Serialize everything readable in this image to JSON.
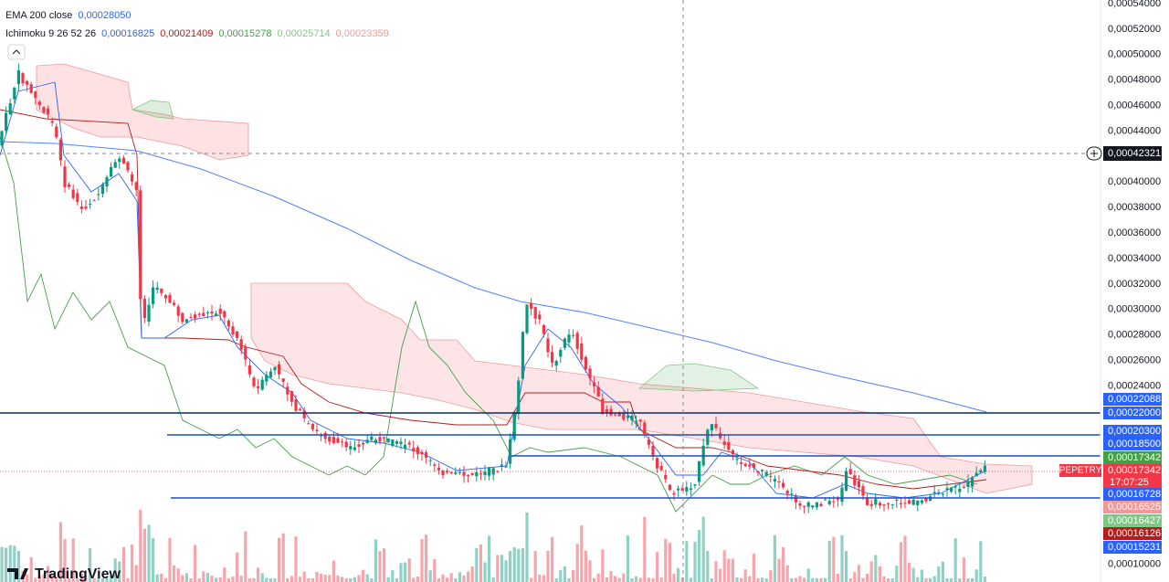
{
  "legend": {
    "ema": {
      "label": "EMA 200 close",
      "value": "0,00028050",
      "color": "#2962ff"
    },
    "ichimoku": {
      "label": "Ichimoku 9 26 52 26",
      "values": [
        "0,00016825",
        "0,00021409",
        "0,00015278",
        "0,00025714",
        "0,00023359"
      ],
      "colors": [
        "#2962ff",
        "#b71c1c",
        "#43a047",
        "#81c784",
        "#ef9a9a"
      ]
    }
  },
  "price_axis": {
    "labels": [
      "0,00054000",
      "0,00052000",
      "0,00050000",
      "0,00048000",
      "0,00046000",
      "0,00044000",
      null,
      "0,00040000",
      "0,00038000",
      "0,00036000",
      "0,00034000",
      "0,00032000",
      "0,00030000",
      "0,00028000",
      "0,00026000",
      "0,00024000",
      null,
      null,
      null,
      null,
      null,
      null,
      "0,00010000"
    ],
    "crosshair": "0,00042321",
    "tags": [
      {
        "text": "0,00022088",
        "color": "#2962ff"
      },
      {
        "text": "0,00022000",
        "color": "#2962ff"
      },
      {
        "text": "0,00020300",
        "color": "#2962ff"
      },
      {
        "text": "0,00018500",
        "color": "#2962ff"
      },
      {
        "text": "0,00017342",
        "color": "#43a047"
      },
      {
        "text": "0,00017342",
        "color": "#f23645"
      },
      {
        "text": "0,00016728",
        "color": "#2962ff"
      },
      {
        "text": "0,00016525",
        "color": "#ef9a9a"
      },
      {
        "text": "0,00016427",
        "color": "#81c784"
      },
      {
        "text": "0,00016126",
        "color": "#b71c1c"
      },
      {
        "text": "0,00015231",
        "color": "#2962ff"
      }
    ],
    "symbol": "PEPETRY",
    "countdown": "17:07:25"
  },
  "branding": "TradingView"
}
